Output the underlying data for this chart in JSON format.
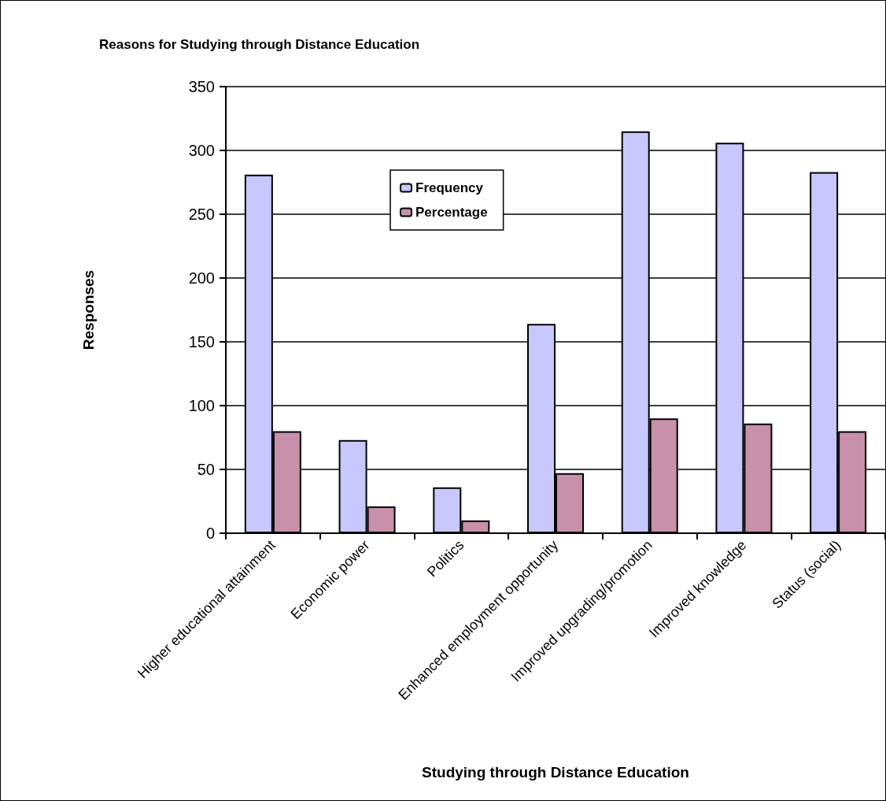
{
  "chart_data": {
    "type": "bar",
    "title": "Reasons for Studying through Distance Education",
    "xlabel": "Studying through Distance Education",
    "ylabel": "Responses",
    "categories": [
      "Higher educational attainment",
      "Economic power",
      "Politics",
      "Enhanced employment opportunity",
      "Improved upgrading/promotion",
      "Improved knowledge",
      "Status (social)"
    ],
    "series": [
      {
        "name": "Frequency",
        "color": "#c8c8ff",
        "values": [
          281,
          73,
          36,
          164,
          315,
          306,
          283
        ]
      },
      {
        "name": "Percentage",
        "color": "#c890aa",
        "values": [
          80,
          21,
          10,
          47,
          90,
          86,
          80
        ]
      }
    ],
    "ylim": [
      0,
      350
    ],
    "yticks": [
      0,
      50,
      100,
      150,
      200,
      250,
      300,
      350
    ],
    "grid": "y",
    "legend": "top"
  }
}
